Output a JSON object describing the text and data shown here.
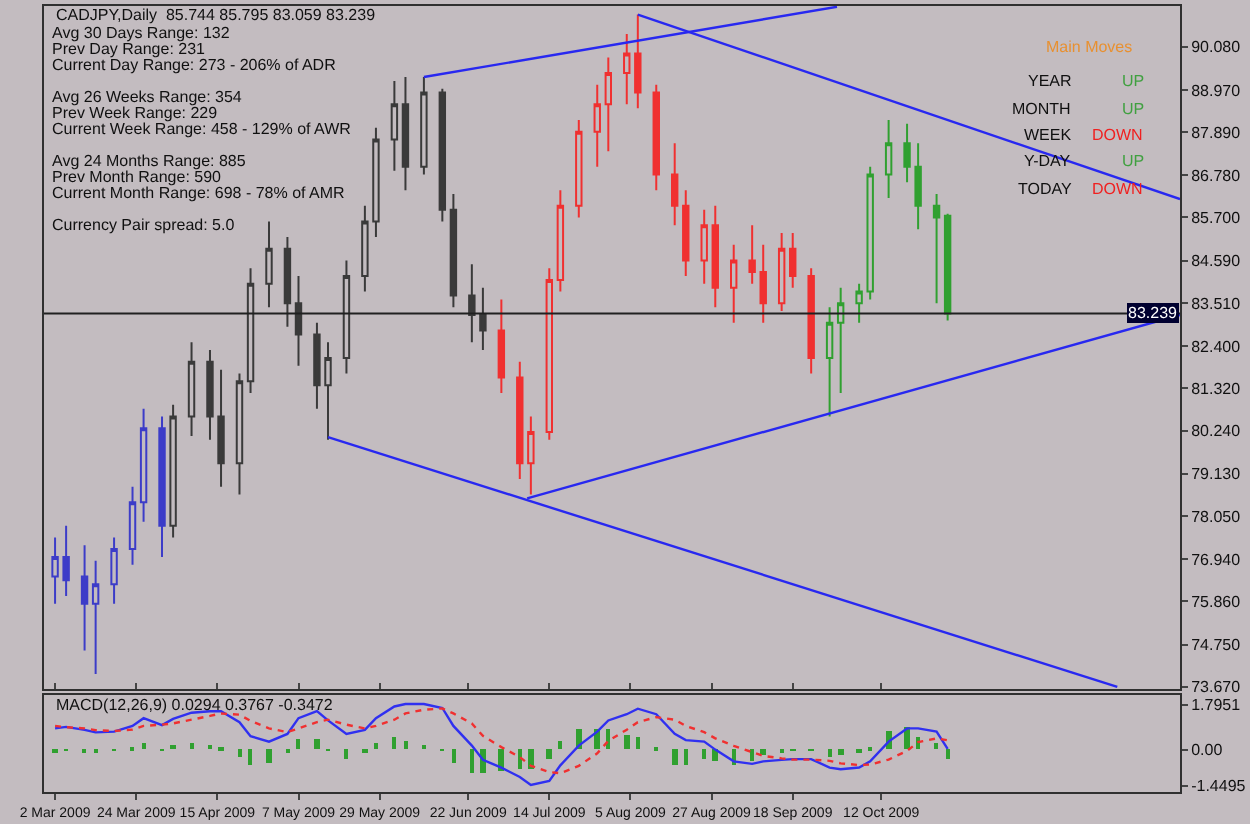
{
  "chart_data": [
    {
      "type": "candlestick",
      "title": "CADJPY,Daily  85.744 85.795 83.059 83.239",
      "series": [
        {
          "color": "#3c3cc8",
          "x": [
            "2009-03-02",
            "2009-03-05",
            "2009-03-10",
            "2009-03-13",
            "2009-03-18",
            "2009-03-23",
            "2009-03-26",
            "2009-03-31"
          ],
          "ohlc": [
            [
              76.5,
              77.5,
              75.8,
              77.0
            ],
            [
              77.0,
              77.8,
              76.0,
              76.4
            ],
            [
              76.5,
              77.3,
              74.6,
              75.8
            ],
            [
              75.8,
              76.9,
              74.0,
              76.3
            ],
            [
              76.3,
              77.5,
              75.8,
              77.2
            ],
            [
              77.2,
              78.8,
              76.8,
              78.4
            ],
            [
              78.4,
              80.8,
              77.9,
              80.3
            ],
            [
              80.3,
              80.6,
              77.0,
              77.8
            ]
          ]
        },
        {
          "color": "#3a3a3a",
          "x": [
            "2009-04-03",
            "2009-04-08",
            "2009-04-13",
            "2009-04-16",
            "2009-04-21",
            "2009-04-24",
            "2009-04-29",
            "2009-05-04",
            "2009-05-07",
            "2009-05-12",
            "2009-05-15",
            "2009-05-20",
            "2009-05-25",
            "2009-05-28",
            "2009-06-02",
            "2009-06-05",
            "2009-06-10",
            "2009-06-15",
            "2009-06-18",
            "2009-06-23",
            "2009-06-26"
          ],
          "ohlc": [
            [
              77.8,
              80.9,
              77.5,
              80.6
            ],
            [
              80.6,
              82.5,
              80.1,
              82.0
            ],
            [
              82.0,
              82.3,
              80.0,
              80.6
            ],
            [
              80.6,
              81.8,
              78.8,
              79.4
            ],
            [
              79.4,
              81.7,
              78.6,
              81.5
            ],
            [
              81.5,
              84.4,
              81.2,
              84.0
            ],
            [
              84.0,
              85.6,
              83.4,
              84.9
            ],
            [
              84.9,
              85.2,
              82.9,
              83.5
            ],
            [
              83.5,
              84.2,
              81.9,
              82.7
            ],
            [
              82.7,
              83.0,
              80.8,
              81.4
            ],
            [
              81.4,
              82.5,
              80.0,
              82.1
            ],
            [
              82.1,
              84.6,
              81.7,
              84.2
            ],
            [
              84.2,
              86.0,
              83.8,
              85.6
            ],
            [
              85.6,
              88.0,
              85.2,
              87.7
            ],
            [
              87.7,
              89.2,
              86.9,
              88.6
            ],
            [
              88.6,
              89.3,
              86.4,
              87.0
            ],
            [
              87.0,
              89.3,
              86.8,
              88.9
            ],
            [
              88.9,
              89.0,
              85.6,
              85.9
            ],
            [
              85.9,
              86.3,
              83.4,
              83.7
            ],
            [
              83.7,
              84.5,
              82.5,
              83.2
            ],
            [
              83.2,
              83.9,
              82.3,
              82.8
            ]
          ]
        },
        {
          "color": "#f03030",
          "x": [
            "2009-07-01",
            "2009-07-06",
            "2009-07-09",
            "2009-07-14",
            "2009-07-17",
            "2009-07-22",
            "2009-07-27",
            "2009-07-30",
            "2009-08-04",
            "2009-08-07",
            "2009-08-12",
            "2009-08-17",
            "2009-08-20",
            "2009-08-25",
            "2009-08-28",
            "2009-09-02",
            "2009-09-07",
            "2009-09-10",
            "2009-09-15",
            "2009-09-18",
            "2009-09-23"
          ],
          "ohlc": [
            [
              82.8,
              83.6,
              81.2,
              81.6
            ],
            [
              81.6,
              82.0,
              79.0,
              79.4
            ],
            [
              79.4,
              80.6,
              78.6,
              80.2
            ],
            [
              80.2,
              84.4,
              80.0,
              84.1
            ],
            [
              84.1,
              86.4,
              83.8,
              86.0
            ],
            [
              86.0,
              88.2,
              85.7,
              87.9
            ],
            [
              87.9,
              89.1,
              87.0,
              88.6
            ],
            [
              88.6,
              89.8,
              87.4,
              89.4
            ],
            [
              89.4,
              90.4,
              88.6,
              89.9
            ],
            [
              89.9,
              90.9,
              88.5,
              88.9
            ],
            [
              88.9,
              89.1,
              86.4,
              86.8
            ],
            [
              86.8,
              87.6,
              85.5,
              86.0
            ],
            [
              86.0,
              86.4,
              84.2,
              84.6
            ],
            [
              84.6,
              85.9,
              84.0,
              85.5
            ],
            [
              85.5,
              86.0,
              83.4,
              83.9
            ],
            [
              83.9,
              85.0,
              83.0,
              84.6
            ],
            [
              84.6,
              85.5,
              84.0,
              84.3
            ],
            [
              84.3,
              85.0,
              83.0,
              83.5
            ],
            [
              83.5,
              85.3,
              83.3,
              84.9
            ],
            [
              84.9,
              85.3,
              83.9,
              84.2
            ],
            [
              84.2,
              84.4,
              81.7,
              82.1
            ]
          ]
        },
        {
          "color": "#30a030",
          "x": [
            "2009-09-28",
            "2009-10-01",
            "2009-10-06",
            "2009-10-09",
            "2009-10-14",
            "2009-10-19",
            "2009-10-22",
            "2009-10-27",
            "2009-10-30"
          ],
          "ohlc": [
            [
              82.1,
              83.4,
              80.6,
              83.0
            ],
            [
              83.0,
              83.9,
              81.2,
              83.5
            ],
            [
              83.5,
              84.0,
              83.0,
              83.8
            ],
            [
              83.8,
              87.0,
              83.6,
              86.8
            ],
            [
              86.8,
              88.2,
              86.2,
              87.6
            ],
            [
              87.6,
              88.1,
              86.6,
              87.0
            ],
            [
              87.0,
              87.6,
              85.4,
              86.0
            ],
            [
              86.0,
              86.3,
              83.5,
              85.7
            ],
            [
              85.744,
              85.795,
              83.059,
              83.239
            ]
          ]
        },
        {
          "type": "line",
          "color": "#2828f0",
          "x": [
            "2009-06-10",
            "2009-09-30"
          ],
          "values": [
            89.3,
            91.1
          ]
        },
        {
          "type": "line",
          "color": "#2828f0",
          "x": [
            "2009-08-07",
            "2010-01-01"
          ],
          "values": [
            90.9,
            86.17
          ]
        },
        {
          "type": "line",
          "color": "#2828f0",
          "x": [
            "2009-07-08",
            "2010-01-01"
          ],
          "values": [
            78.5,
            83.2
          ]
        },
        {
          "type": "line",
          "color": "#2828f0",
          "x": [
            "2009-05-15",
            "2009-12-15"
          ],
          "values": [
            80.07,
            73.67
          ]
        }
      ],
      "xlim": [
        "2009-02-27",
        "2010-01-01"
      ],
      "xticks": [
        {
          "value": "2009-03-02",
          "label": null
        },
        {
          "value": "2009-03-24",
          "label": null
        },
        {
          "value": "2009-04-15",
          "label": null
        },
        {
          "value": "2009-05-07",
          "label": null
        },
        {
          "value": "2009-05-29",
          "label": null
        },
        {
          "value": "2009-06-22",
          "label": null
        },
        {
          "value": "2009-07-14",
          "label": null
        },
        {
          "value": "2009-08-05",
          "label": null
        },
        {
          "value": "2009-08-27",
          "label": null
        },
        {
          "value": "2009-09-18",
          "label": null
        },
        {
          "value": "2009-10-12",
          "label": null
        }
      ],
      "ylim": [
        73.62,
        91.12
      ],
      "yticks": [
        {
          "value": 90.08,
          "label": "90.080"
        },
        {
          "value": 88.97,
          "label": "88.970"
        },
        {
          "value": 87.89,
          "label": "87.890"
        },
        {
          "value": 86.78,
          "label": "86.780"
        },
        {
          "value": 85.7,
          "label": "85.700"
        },
        {
          "value": 84.59,
          "label": "84.590"
        },
        {
          "value": 83.51,
          "label": "83.510"
        },
        {
          "value": 82.4,
          "label": "82.400"
        },
        {
          "value": 81.32,
          "label": "81.320"
        },
        {
          "value": 80.24,
          "label": "80.240"
        },
        {
          "value": 79.13,
          "label": "79.130"
        },
        {
          "value": 78.05,
          "label": "78.050"
        },
        {
          "value": 76.94,
          "label": "76.940"
        },
        {
          "value": 75.86,
          "label": "75.860"
        },
        {
          "value": 74.75,
          "label": "74.750"
        },
        {
          "value": 73.67,
          "label": "73.670"
        }
      ],
      "tick_labels": "y",
      "ref_lines": [
        {
          "axis": "y",
          "value": 83.239,
          "label": "83.239",
          "color": "#202020"
        }
      ],
      "annotations": [
        "Avg 30 Days Range: 132",
        "Prev Day Range: 231",
        "Current Day Range: 273 - 206% of ADR",
        "Avg 26 Weeks Range: 354",
        "Prev Week Range: 229",
        "Current Week Range: 458 - 129% of AWR",
        "Avg 24 Months Range: 885",
        "Prev Month Range: 590",
        "Current Month Range: 698 - 78% of AMR",
        "Currency Pair spread: 5.0",
        "Main Moves",
        "YEAR",
        "UP",
        "MONTH",
        "UP",
        "WEEK",
        "DOWN",
        "Y-DAY",
        "UP",
        "TODAY",
        "DOWN"
      ],
      "grid": false
    },
    {
      "type": "line",
      "title": "MACD(12,26,9) 0.0294 0.3767 -0.3472",
      "x": [
        "2009-03-02",
        "2009-03-05",
        "2009-03-10",
        "2009-03-13",
        "2009-03-18",
        "2009-03-23",
        "2009-03-26",
        "2009-03-31",
        "2009-04-03",
        "2009-04-08",
        "2009-04-13",
        "2009-04-16",
        "2009-04-21",
        "2009-04-24",
        "2009-04-29",
        "2009-05-04",
        "2009-05-07",
        "2009-05-12",
        "2009-05-15",
        "2009-05-20",
        "2009-05-25",
        "2009-05-28",
        "2009-06-02",
        "2009-06-05",
        "2009-06-10",
        "2009-06-15",
        "2009-06-18",
        "2009-06-23",
        "2009-06-26",
        "2009-07-01",
        "2009-07-06",
        "2009-07-09",
        "2009-07-14",
        "2009-07-17",
        "2009-07-22",
        "2009-07-27",
        "2009-07-30",
        "2009-08-04",
        "2009-08-07",
        "2009-08-12",
        "2009-08-17",
        "2009-08-20",
        "2009-08-25",
        "2009-08-28",
        "2009-09-02",
        "2009-09-07",
        "2009-09-10",
        "2009-09-15",
        "2009-09-18",
        "2009-09-23",
        "2009-09-28",
        "2009-10-01",
        "2009-10-06",
        "2009-10-09",
        "2009-10-14",
        "2009-10-19",
        "2009-10-22",
        "2009-10-27",
        "2009-10-30"
      ],
      "series": [
        {
          "type": "bar",
          "color": "#30a030",
          "values": [
            -0.1,
            0.01,
            -0.06,
            -0.09,
            -0.03,
            0.15,
            0.31,
            -0.02,
            0.18,
            0.28,
            0.19,
            0.09,
            -0.3,
            -0.61,
            -0.53,
            -0.07,
            0.41,
            0.44,
            -0.03,
            -0.37,
            -0.06,
            0.31,
            0.53,
            0.38,
            0.23,
            0.02,
            -0.5,
            -0.89,
            -0.96,
            -0.82,
            -0.8,
            -0.77,
            -0.36,
            0.32,
            0.81,
            0.87,
            0.82,
            0.62,
            0.54,
            0.12,
            -0.57,
            -0.57,
            -0.38,
            -0.45,
            -0.62,
            -0.47,
            -0.22,
            -0.06,
            0.02,
            0.02,
            -0.27,
            -0.24,
            -0.1,
            0.13,
            0.72,
            0.9,
            0.55,
            0.27,
            -0.3472
          ]
        },
        {
          "type": "line",
          "color": "#3030f0",
          "line_style": "solid",
          "values": [
            0.85,
            0.91,
            0.79,
            0.69,
            0.72,
            0.95,
            1.26,
            0.98,
            1.23,
            1.48,
            1.54,
            1.54,
            1.1,
            0.54,
            0.32,
            0.63,
            1.26,
            1.54,
            1.17,
            0.63,
            0.79,
            1.26,
            1.73,
            1.83,
            1.83,
            1.67,
            0.95,
            0.16,
            -0.41,
            -0.72,
            -1.1,
            -1.42,
            -1.26,
            -0.63,
            0.16,
            0.72,
            1.17,
            1.42,
            1.64,
            1.42,
            0.63,
            0.38,
            0.32,
            0.0,
            -0.47,
            -0.57,
            -0.47,
            -0.41,
            -0.38,
            -0.38,
            -0.72,
            -0.79,
            -0.72,
            -0.47,
            0.32,
            0.85,
            0.85,
            0.72,
            0.0294
          ]
        },
        {
          "type": "line",
          "color": "#f03030",
          "line_style": "dotted",
          "values": [
            0.95,
            0.9,
            0.85,
            0.78,
            0.75,
            0.8,
            0.95,
            1.0,
            1.05,
            1.2,
            1.35,
            1.45,
            1.4,
            1.15,
            0.85,
            0.7,
            0.85,
            1.1,
            1.2,
            1.0,
            0.85,
            0.95,
            1.2,
            1.45,
            1.6,
            1.65,
            1.45,
            1.05,
            0.55,
            0.1,
            -0.3,
            -0.65,
            -0.9,
            -0.95,
            -0.65,
            -0.15,
            0.35,
            0.8,
            1.1,
            1.3,
            1.2,
            0.95,
            0.7,
            0.45,
            0.15,
            -0.1,
            -0.25,
            -0.35,
            -0.4,
            -0.4,
            -0.45,
            -0.55,
            -0.62,
            -0.6,
            -0.4,
            -0.05,
            0.3,
            0.45,
            0.3767
          ]
        }
      ],
      "xlim": [
        "2009-02-27",
        "2010-01-01"
      ],
      "xticks": [
        {
          "value": "2009-03-02",
          "label": "2 Mar 2009"
        },
        {
          "value": "2009-03-24",
          "label": "24 Mar 2009"
        },
        {
          "value": "2009-04-15",
          "label": "15 Apr 2009"
        },
        {
          "value": "2009-05-07",
          "label": "7 May 2009"
        },
        {
          "value": "2009-05-29",
          "label": "29 May 2009"
        },
        {
          "value": "2009-06-22",
          "label": "22 Jun 2009"
        },
        {
          "value": "2009-07-14",
          "label": "14 Jul 2009"
        },
        {
          "value": "2009-08-05",
          "label": "5 Aug 2009"
        },
        {
          "value": "2009-08-27",
          "label": "27 Aug 2009"
        },
        {
          "value": "2009-09-18",
          "label": "18 Sep 2009"
        },
        {
          "value": "2009-10-12",
          "label": "12 Oct 2009"
        }
      ],
      "ylim": [
        -1.7,
        2.2
      ],
      "yticks": [
        1.7951,
        {
          "value": 0,
          "label": "0.00"
        },
        -1.4495
      ]
    }
  ]
}
